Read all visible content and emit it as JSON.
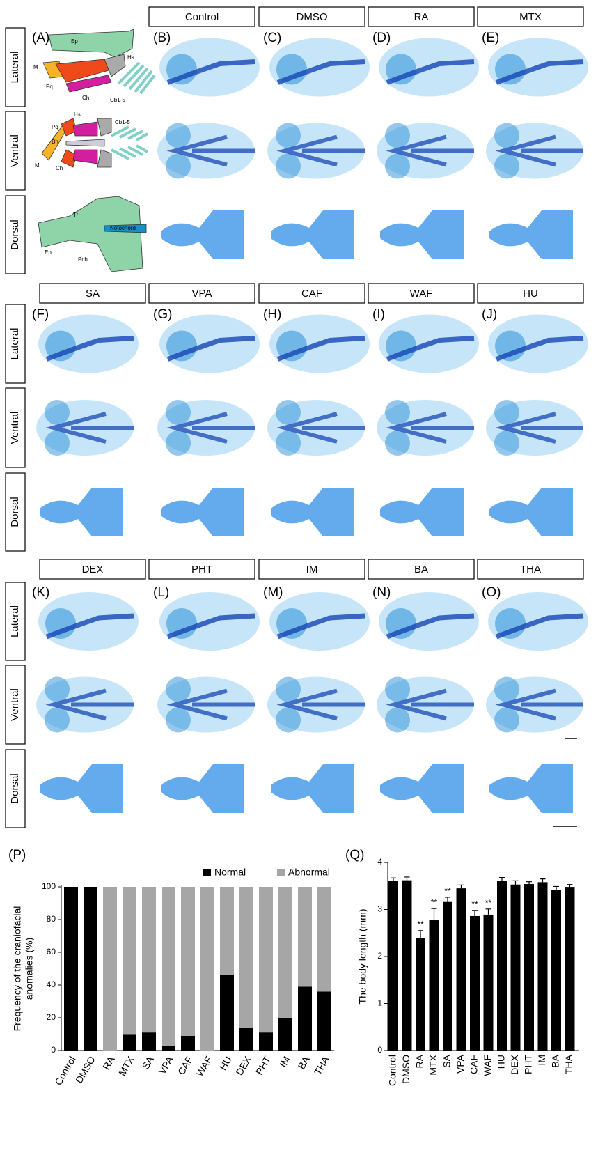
{
  "figure": {
    "panel_letters": [
      "(A)",
      "(B)",
      "(C)",
      "(D)",
      "(E)",
      "(F)",
      "(G)",
      "(H)",
      "(I)",
      "(J)",
      "(K)",
      "(L)",
      "(M)",
      "(N)",
      "(O)"
    ],
    "column_headers": [
      "Control",
      "DMSO",
      "RA",
      "MTX",
      "SA",
      "VPA",
      "CAF",
      "WAF",
      "HU",
      "DEX",
      "PHT",
      "IM",
      "BA",
      "THA"
    ],
    "row_labels": [
      "Lateral",
      "Ventral",
      "Dorsal"
    ],
    "diagram": {
      "lateral": [
        "Ep",
        "M",
        "Pq",
        "Ch",
        "Hs",
        "Cb1-5"
      ],
      "ventral": [
        "Hs",
        "Cb1-5",
        "Pq",
        "Bh",
        "M",
        "Ch"
      ],
      "dorsal": [
        "Tr",
        "Notochord",
        "Ep",
        "Pch"
      ]
    }
  },
  "chart_data": [
    {
      "type": "stacked_bar",
      "panel": "(P)",
      "ylabel": [
        "Frequency of the craniofacial",
        "anomalies (%)"
      ],
      "categories": [
        "Control",
        "DMSO",
        "RA",
        "MTX",
        "SA",
        "VPA",
        "CAF",
        "WAF",
        "HU",
        "DEX",
        "PHT",
        "IM",
        "BA",
        "THA"
      ],
      "series": [
        {
          "name": "Normal",
          "color": "#000000",
          "values": [
            100,
            100,
            0,
            10,
            11,
            3,
            9,
            0,
            46,
            14,
            11,
            20,
            39,
            36
          ]
        },
        {
          "name": "Abnormal",
          "color": "#a6a6a6",
          "values": [
            0,
            0,
            100,
            90,
            89,
            97,
            91,
            100,
            54,
            86,
            89,
            80,
            61,
            64
          ]
        }
      ],
      "ylim": [
        0,
        100
      ],
      "yticks": [
        0,
        20,
        40,
        60,
        80,
        100
      ],
      "legend": "top-right"
    },
    {
      "type": "bar",
      "panel": "(Q)",
      "ylabel": "The body length (mm)",
      "categories": [
        "Control",
        "DMSO",
        "RA",
        "MTX",
        "SA",
        "VPA",
        "CAF",
        "WAF",
        "HU",
        "DEX",
        "PHT",
        "IM",
        "BA",
        "THA"
      ],
      "values": [
        3.6,
        3.62,
        2.4,
        2.77,
        3.16,
        3.45,
        2.86,
        2.89,
        3.6,
        3.53,
        3.54,
        3.58,
        3.42,
        3.48
      ],
      "errors": [
        0.07,
        0.07,
        0.15,
        0.25,
        0.1,
        0.07,
        0.12,
        0.12,
        0.08,
        0.08,
        0.05,
        0.07,
        0.07,
        0.05
      ],
      "annotations": [
        null,
        null,
        "**",
        "**",
        "**",
        null,
        "**",
        "**",
        null,
        null,
        null,
        null,
        null,
        null
      ],
      "color": "#000000",
      "ylim": [
        0,
        4
      ],
      "yticks": [
        0,
        1,
        2,
        3,
        4
      ]
    }
  ]
}
